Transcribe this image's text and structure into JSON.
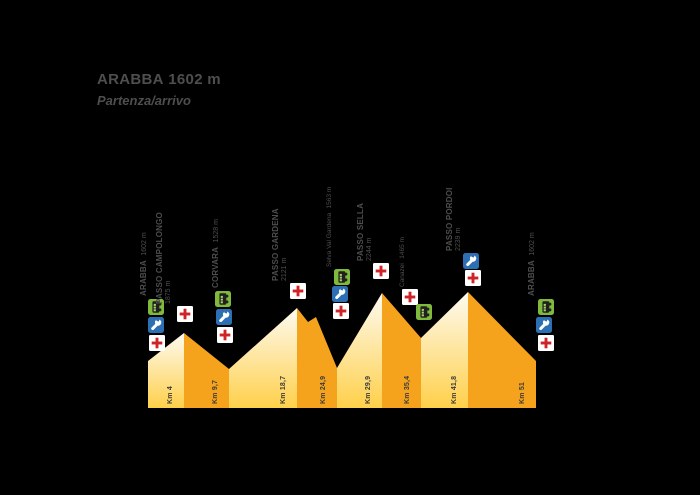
{
  "header": {
    "name": "ARABBA",
    "altitude": "1602 m",
    "subtitle": "Partenza/arrivo"
  },
  "colors": {
    "background": "#000000",
    "text_gray": "#4E4E4D",
    "orange_descent": "#F5A21C",
    "yellow_climb_top": "#FDFBF2",
    "yellow_climb_bottom": "#FFD04A",
    "shuttle_green": "#7FBA3D",
    "mechanic_blue": "#2C6FB3",
    "medical_red": "#CE2427",
    "medical_white": "#FFFFFF"
  },
  "chart_data": {
    "type": "area",
    "title": "ARABBA 1602 m — Partenza/arrivo",
    "x_unit": "km",
    "y_unit": "m",
    "xlim": [
      0,
      51
    ],
    "grid": false,
    "waypoints": [
      {
        "name": "ARABBA",
        "altitude_label": "1602 m",
        "altitude_m": 1602,
        "km": 0,
        "style": "major",
        "services": [
          "shuttle",
          "mechanic",
          "medical"
        ]
      },
      {
        "name": "PASSO CAMPOLONGO",
        "altitude_label": "1875 m",
        "altitude_m": 1875,
        "km": 4,
        "style": "pass",
        "services": [
          "medical"
        ]
      },
      {
        "name": "CORVARA",
        "altitude_label": "1528 m",
        "altitude_m": 1528,
        "km": 9.7,
        "style": "major",
        "services": [
          "shuttle",
          "mechanic",
          "medical"
        ]
      },
      {
        "name": "PASSO GARDENA",
        "altitude_label": "2121 m",
        "altitude_m": 2121,
        "km": 18.7,
        "style": "pass",
        "services": [
          "medical"
        ]
      },
      {
        "name": "Selva Val Gardena",
        "altitude_label": "1563 m",
        "altitude_m": 1563,
        "km": 24.9,
        "style": "town",
        "services": [
          "shuttle",
          "mechanic",
          "medical"
        ]
      },
      {
        "name": "PASSO SELLA",
        "altitude_label": "2244 m",
        "altitude_m": 2244,
        "km": 29.9,
        "style": "pass",
        "services": [
          "medical"
        ]
      },
      {
        "name": "Canazei",
        "altitude_label": "1465 m",
        "altitude_m": 1465,
        "km": 35.4,
        "style": "town",
        "services": [
          "medical",
          "shuttle"
        ]
      },
      {
        "name": "PASSO PORDOI",
        "altitude_label": "2239 m",
        "altitude_m": 2239,
        "km": 41.8,
        "style": "pass",
        "services": [
          "mechanic",
          "medical"
        ]
      },
      {
        "name": "ARABBA",
        "altitude_label": "1602 m",
        "altitude_m": 1602,
        "km": 51,
        "style": "major",
        "services": [
          "shuttle",
          "mechanic",
          "medical"
        ]
      }
    ],
    "km_tick_labels": [
      "Km 4",
      "Km 9,7",
      "Km 18,7",
      "Km 24,9",
      "Km 29,9",
      "Km 35,4",
      "Km 41,8",
      "Km 51"
    ]
  }
}
